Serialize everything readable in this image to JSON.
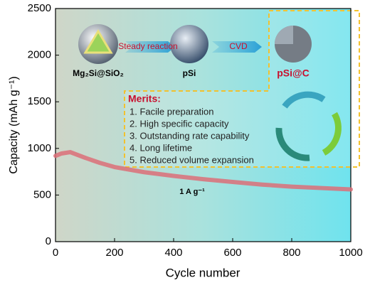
{
  "chart_data": {
    "type": "line",
    "xlabel": "Cycle number",
    "ylabel": "Capacity (mAh g⁻¹)",
    "x": [
      0,
      20,
      50,
      100,
      150,
      200,
      300,
      400,
      500,
      600,
      700,
      800,
      900,
      1000
    ],
    "series": [
      {
        "color": "#dc6f78",
        "values": [
          920,
          945,
          960,
          900,
          845,
          800,
          745,
          705,
          670,
          640,
          612,
          590,
          575,
          560
        ]
      }
    ],
    "xlim": [
      0,
      1000
    ],
    "xticks": [
      0,
      200,
      400,
      600,
      800,
      1000
    ],
    "ylim": [
      0,
      2500
    ],
    "yticks": [
      0,
      500,
      1000,
      1500,
      2000,
      2500
    ],
    "annotations": {
      "precursor": "Mg₂Si@SiO₂",
      "step1": "Steady reaction",
      "intermediate": "pSi",
      "step2": "CVD",
      "product": "pSi@C",
      "current": "1 A g⁻¹"
    },
    "merits_title": "Merits:",
    "merits": [
      "1.   Facile preparation",
      "2.   High specific capacity",
      "3.   Outstanding rate capability",
      "4.   Long lifetime",
      "5.   Reduced volume expansion"
    ]
  }
}
